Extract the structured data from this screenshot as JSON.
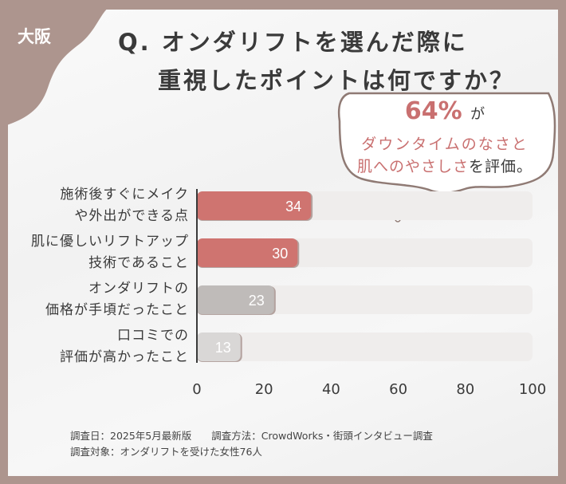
{
  "badge": {
    "region": "大阪"
  },
  "title": {
    "line1": "Q. オンダリフトを選んだ際に",
    "line2": "重視したポイントは何ですか？"
  },
  "callout": {
    "percent": "64%",
    "percent_suffix": "が",
    "line1": "ダウンタイムのなさと",
    "line2_highlight": "肌へのやさしさ",
    "line2_suffix": "を評価。"
  },
  "colors": {
    "background": "#ad958e",
    "highlight": "#cf7470",
    "mid": "#bfbbb9",
    "light": "#d9d7d6",
    "track": "#efedec"
  },
  "chart_data": {
    "type": "bar",
    "orientation": "horizontal",
    "categories": [
      [
        "施術後すぐにメイク",
        "や外出ができる点"
      ],
      [
        "肌に優しいリフトアップ",
        "技術であること"
      ],
      [
        "オンダリフトの",
        "価格が手頃だったこと"
      ],
      [
        "口コミでの",
        "評価が高かったこと"
      ]
    ],
    "values": [
      34,
      30,
      23,
      13
    ],
    "value_labels": [
      "34",
      "30",
      "23",
      "13"
    ],
    "bar_colors": [
      "#cf7470",
      "#cf7470",
      "#bfbbb9",
      "#d9d7d6"
    ],
    "xlim": [
      0,
      100
    ],
    "xticks": [
      "0",
      "20",
      "40",
      "60",
      "80",
      "100"
    ],
    "title": "",
    "xlabel": "",
    "ylabel": ""
  },
  "footer": {
    "line1": "調査日：2025年5月最新版　　調査方法：CrowdWorks・街頭インタビュー調査",
    "line2": "調査対象：オンダリフトを受けた女性76人"
  }
}
